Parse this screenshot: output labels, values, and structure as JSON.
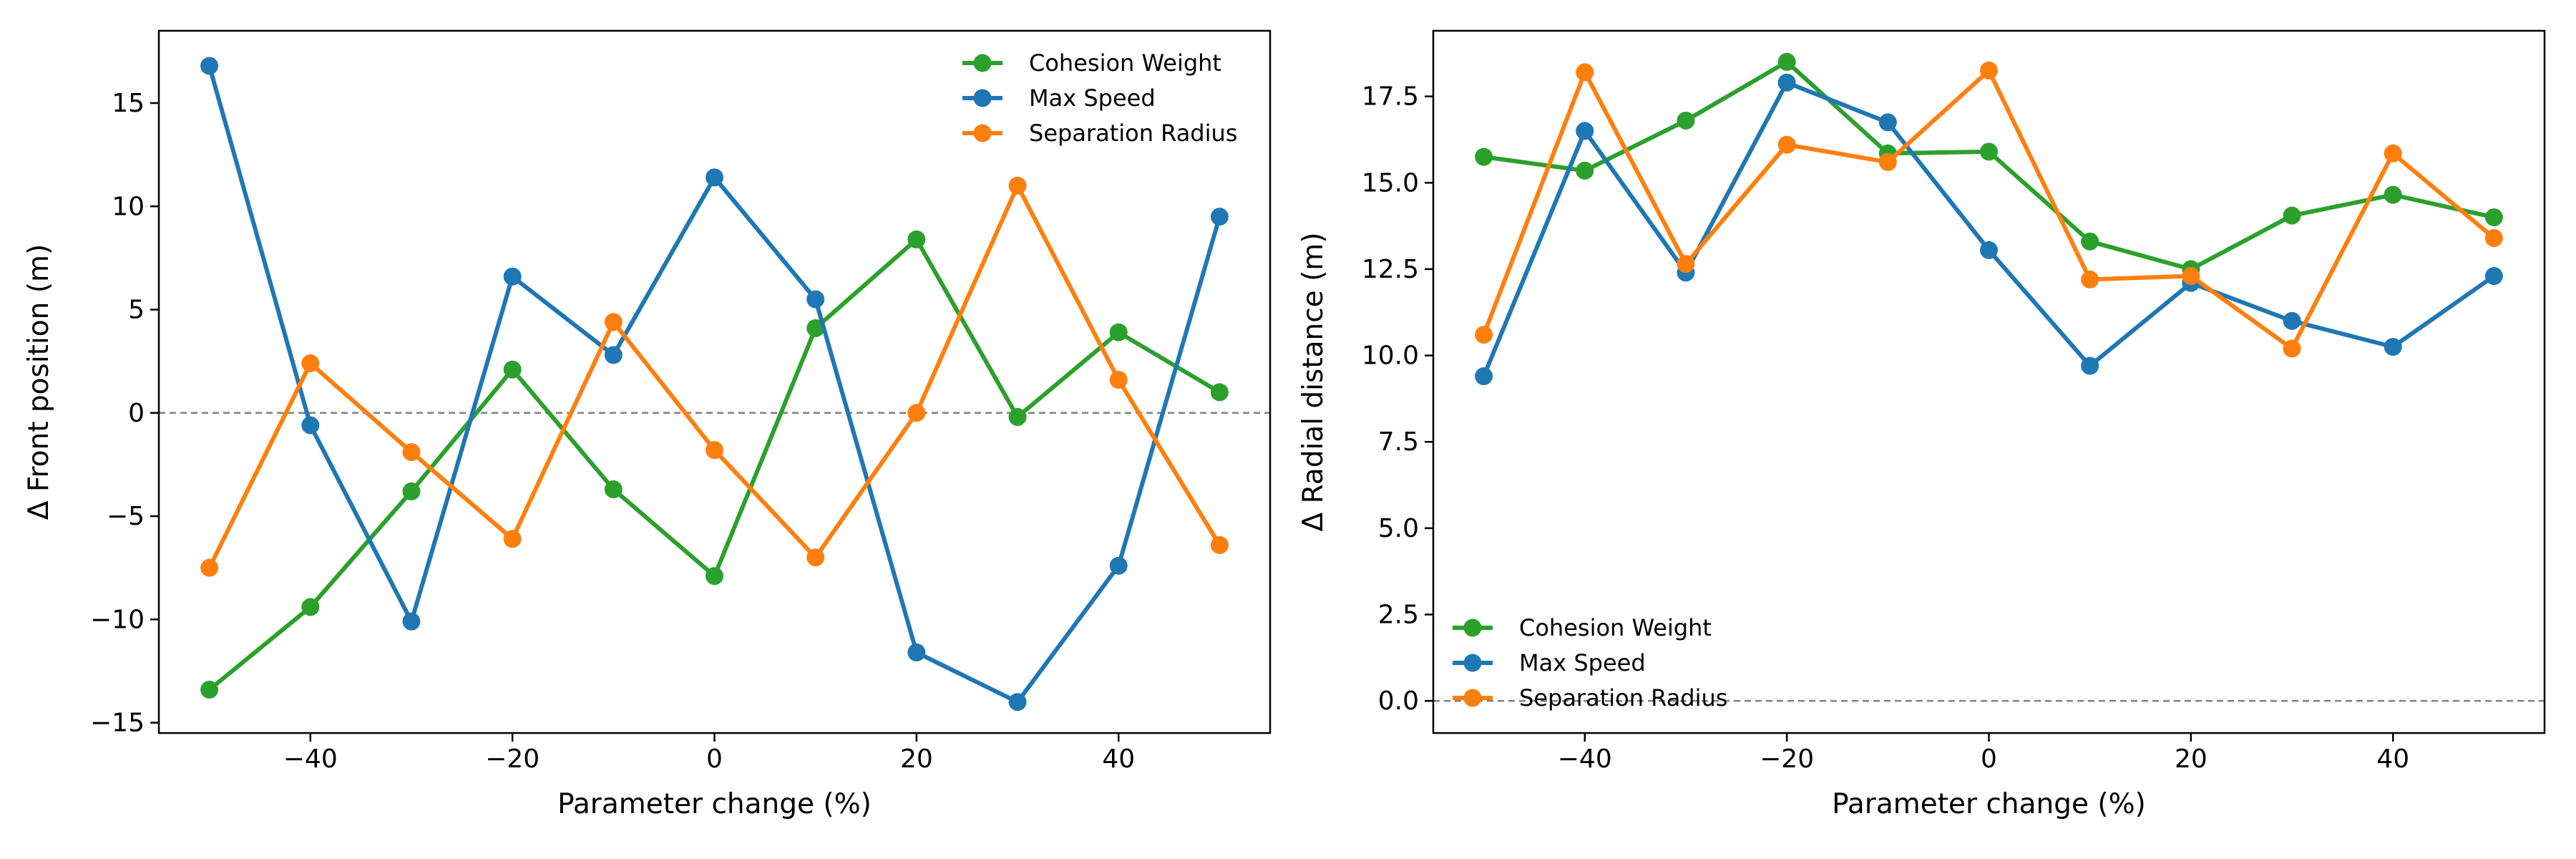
{
  "chart_data": [
    {
      "type": "line",
      "xlabel": "Parameter change (%)",
      "ylabel": "Δ Front position (m)",
      "x": [
        -50,
        -40,
        -30,
        -20,
        -10,
        0,
        10,
        20,
        30,
        40,
        50
      ],
      "xlim": [
        -55,
        55
      ],
      "ylim": [
        -15.5,
        18.5
      ],
      "xticks": [
        -40,
        -20,
        0,
        20,
        40
      ],
      "yticks": [
        -15,
        -10,
        -5,
        0,
        5,
        10,
        15
      ],
      "reference_line": {
        "y": 0,
        "style": "dashed"
      },
      "legend_position": "upper right",
      "series": [
        {
          "name": "Cohesion Weight",
          "color": "#2ca02c",
          "values": [
            -13.4,
            -9.4,
            -3.8,
            2.1,
            -3.7,
            -7.9,
            4.1,
            8.4,
            -0.2,
            3.9,
            1.0
          ]
        },
        {
          "name": "Max Speed",
          "color": "#1f77b4",
          "values": [
            16.8,
            -0.6,
            -10.1,
            6.6,
            2.8,
            11.4,
            5.5,
            -11.6,
            -14.0,
            -7.4,
            9.5
          ]
        },
        {
          "name": "Separation Radius",
          "color": "#ff7f0e",
          "values": [
            -7.5,
            2.4,
            -1.9,
            -6.1,
            4.4,
            -1.8,
            -7.0,
            0.0,
            11.0,
            1.6,
            -6.4
          ]
        }
      ]
    },
    {
      "type": "line",
      "xlabel": "Parameter change (%)",
      "ylabel": "Δ Radial distance (m)",
      "x": [
        -50,
        -40,
        -30,
        -20,
        -10,
        0,
        10,
        20,
        30,
        40,
        50
      ],
      "xlim": [
        -55,
        55
      ],
      "ylim": [
        -0.93,
        19.4
      ],
      "xticks": [
        -40,
        -20,
        0,
        20,
        40
      ],
      "yticks": [
        0.0,
        2.5,
        5.0,
        7.5,
        10.0,
        12.5,
        15.0,
        17.5
      ],
      "ytick_labels": [
        "0.0",
        "2.5",
        "5.0",
        "7.5",
        "10.0",
        "12.5",
        "15.0",
        "17.5"
      ],
      "reference_line": {
        "y": 0,
        "style": "dashed"
      },
      "legend_position": "lower left",
      "series": [
        {
          "name": "Cohesion Weight",
          "color": "#2ca02c",
          "values": [
            15.75,
            15.35,
            16.8,
            18.5,
            15.85,
            15.9,
            13.3,
            12.5,
            14.05,
            14.65,
            14.0
          ]
        },
        {
          "name": "Max Speed",
          "color": "#1f77b4",
          "values": [
            9.4,
            16.5,
            12.4,
            17.9,
            16.75,
            13.05,
            9.7,
            12.1,
            11.0,
            10.25,
            12.3
          ]
        },
        {
          "name": "Separation Radius",
          "color": "#ff7f0e",
          "values": [
            10.6,
            18.2,
            12.65,
            16.1,
            15.6,
            18.25,
            12.2,
            12.3,
            10.2,
            15.85,
            13.4
          ]
        }
      ]
    }
  ]
}
